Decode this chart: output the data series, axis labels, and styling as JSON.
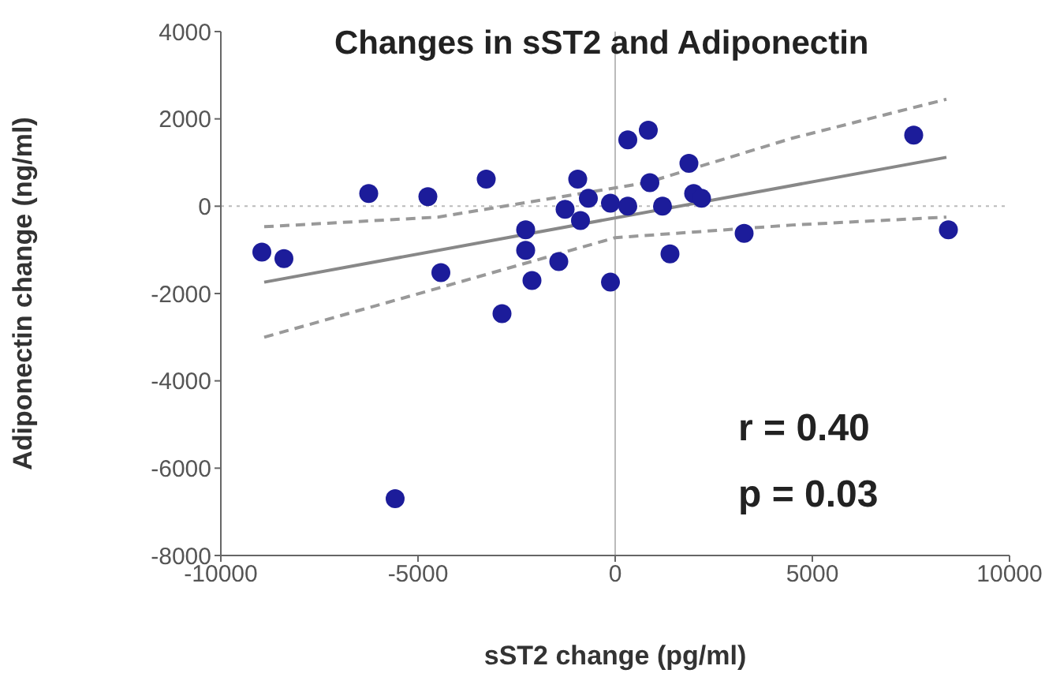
{
  "chart_data": {
    "type": "scatter",
    "title": "Changes in sST2 and Adiponectin",
    "xlabel": "sST2 change (pg/ml)",
    "ylabel": "Adiponectin change (ng/ml)",
    "xlim": [
      -10000,
      10000
    ],
    "xticks": [
      -10000,
      -5000,
      0,
      5000,
      10000
    ],
    "ylim": [
      -8000,
      4000
    ],
    "yticks": [
      -8000,
      -6000,
      -4000,
      -2000,
      0,
      2000,
      4000
    ],
    "marker": "circle",
    "series": [
      {
        "color": "#1c1c9a",
        "x": [
          -8960,
          -8400,
          -6250,
          -4750,
          -3270,
          -4420,
          -2870,
          -2270,
          -2270,
          -2110,
          -1430,
          -1270,
          -950,
          -680,
          -880,
          -120,
          -120,
          320,
          840,
          320,
          880,
          1200,
          1390,
          1870,
          1990,
          2190,
          3270,
          7570,
          8450,
          -5580
        ],
        "values": [
          -1050,
          -1200,
          290,
          220,
          620,
          -1520,
          -2460,
          -540,
          -1010,
          -1700,
          -1270,
          -70,
          620,
          180,
          -330,
          -1740,
          70,
          1520,
          1740,
          0,
          540,
          0,
          -1090,
          980,
          290,
          180,
          -620,
          1630,
          -540,
          -6700
        ]
      },
      {
        "type": "line",
        "color": "#888888",
        "line_style": "solid",
        "marker": "none",
        "x": [
          -8900,
          8400
        ],
        "values": [
          -1740,
          1120
        ]
      },
      {
        "type": "line",
        "color": "#999999",
        "line_style": "dashed",
        "marker": "none",
        "x": [
          -8900,
          -4500,
          800,
          4500,
          8400
        ],
        "values": [
          -470,
          -250,
          540,
          1560,
          2450
        ]
      },
      {
        "type": "line",
        "color": "#999999",
        "line_style": "dashed",
        "marker": "none",
        "x": [
          -8900,
          -4500,
          0,
          4500,
          8400
        ],
        "values": [
          -3000,
          -1880,
          -720,
          -430,
          -250
        ]
      }
    ],
    "ref_lines": [
      {
        "axis": "x",
        "value": 0,
        "color": "#bbbbbb",
        "line_style": "solid"
      },
      {
        "axis": "y",
        "value": 0,
        "color": "#bbbbbb",
        "line_style": "dotted"
      }
    ],
    "annotations": [
      "r = 0.40",
      "p = 0.03"
    ]
  }
}
